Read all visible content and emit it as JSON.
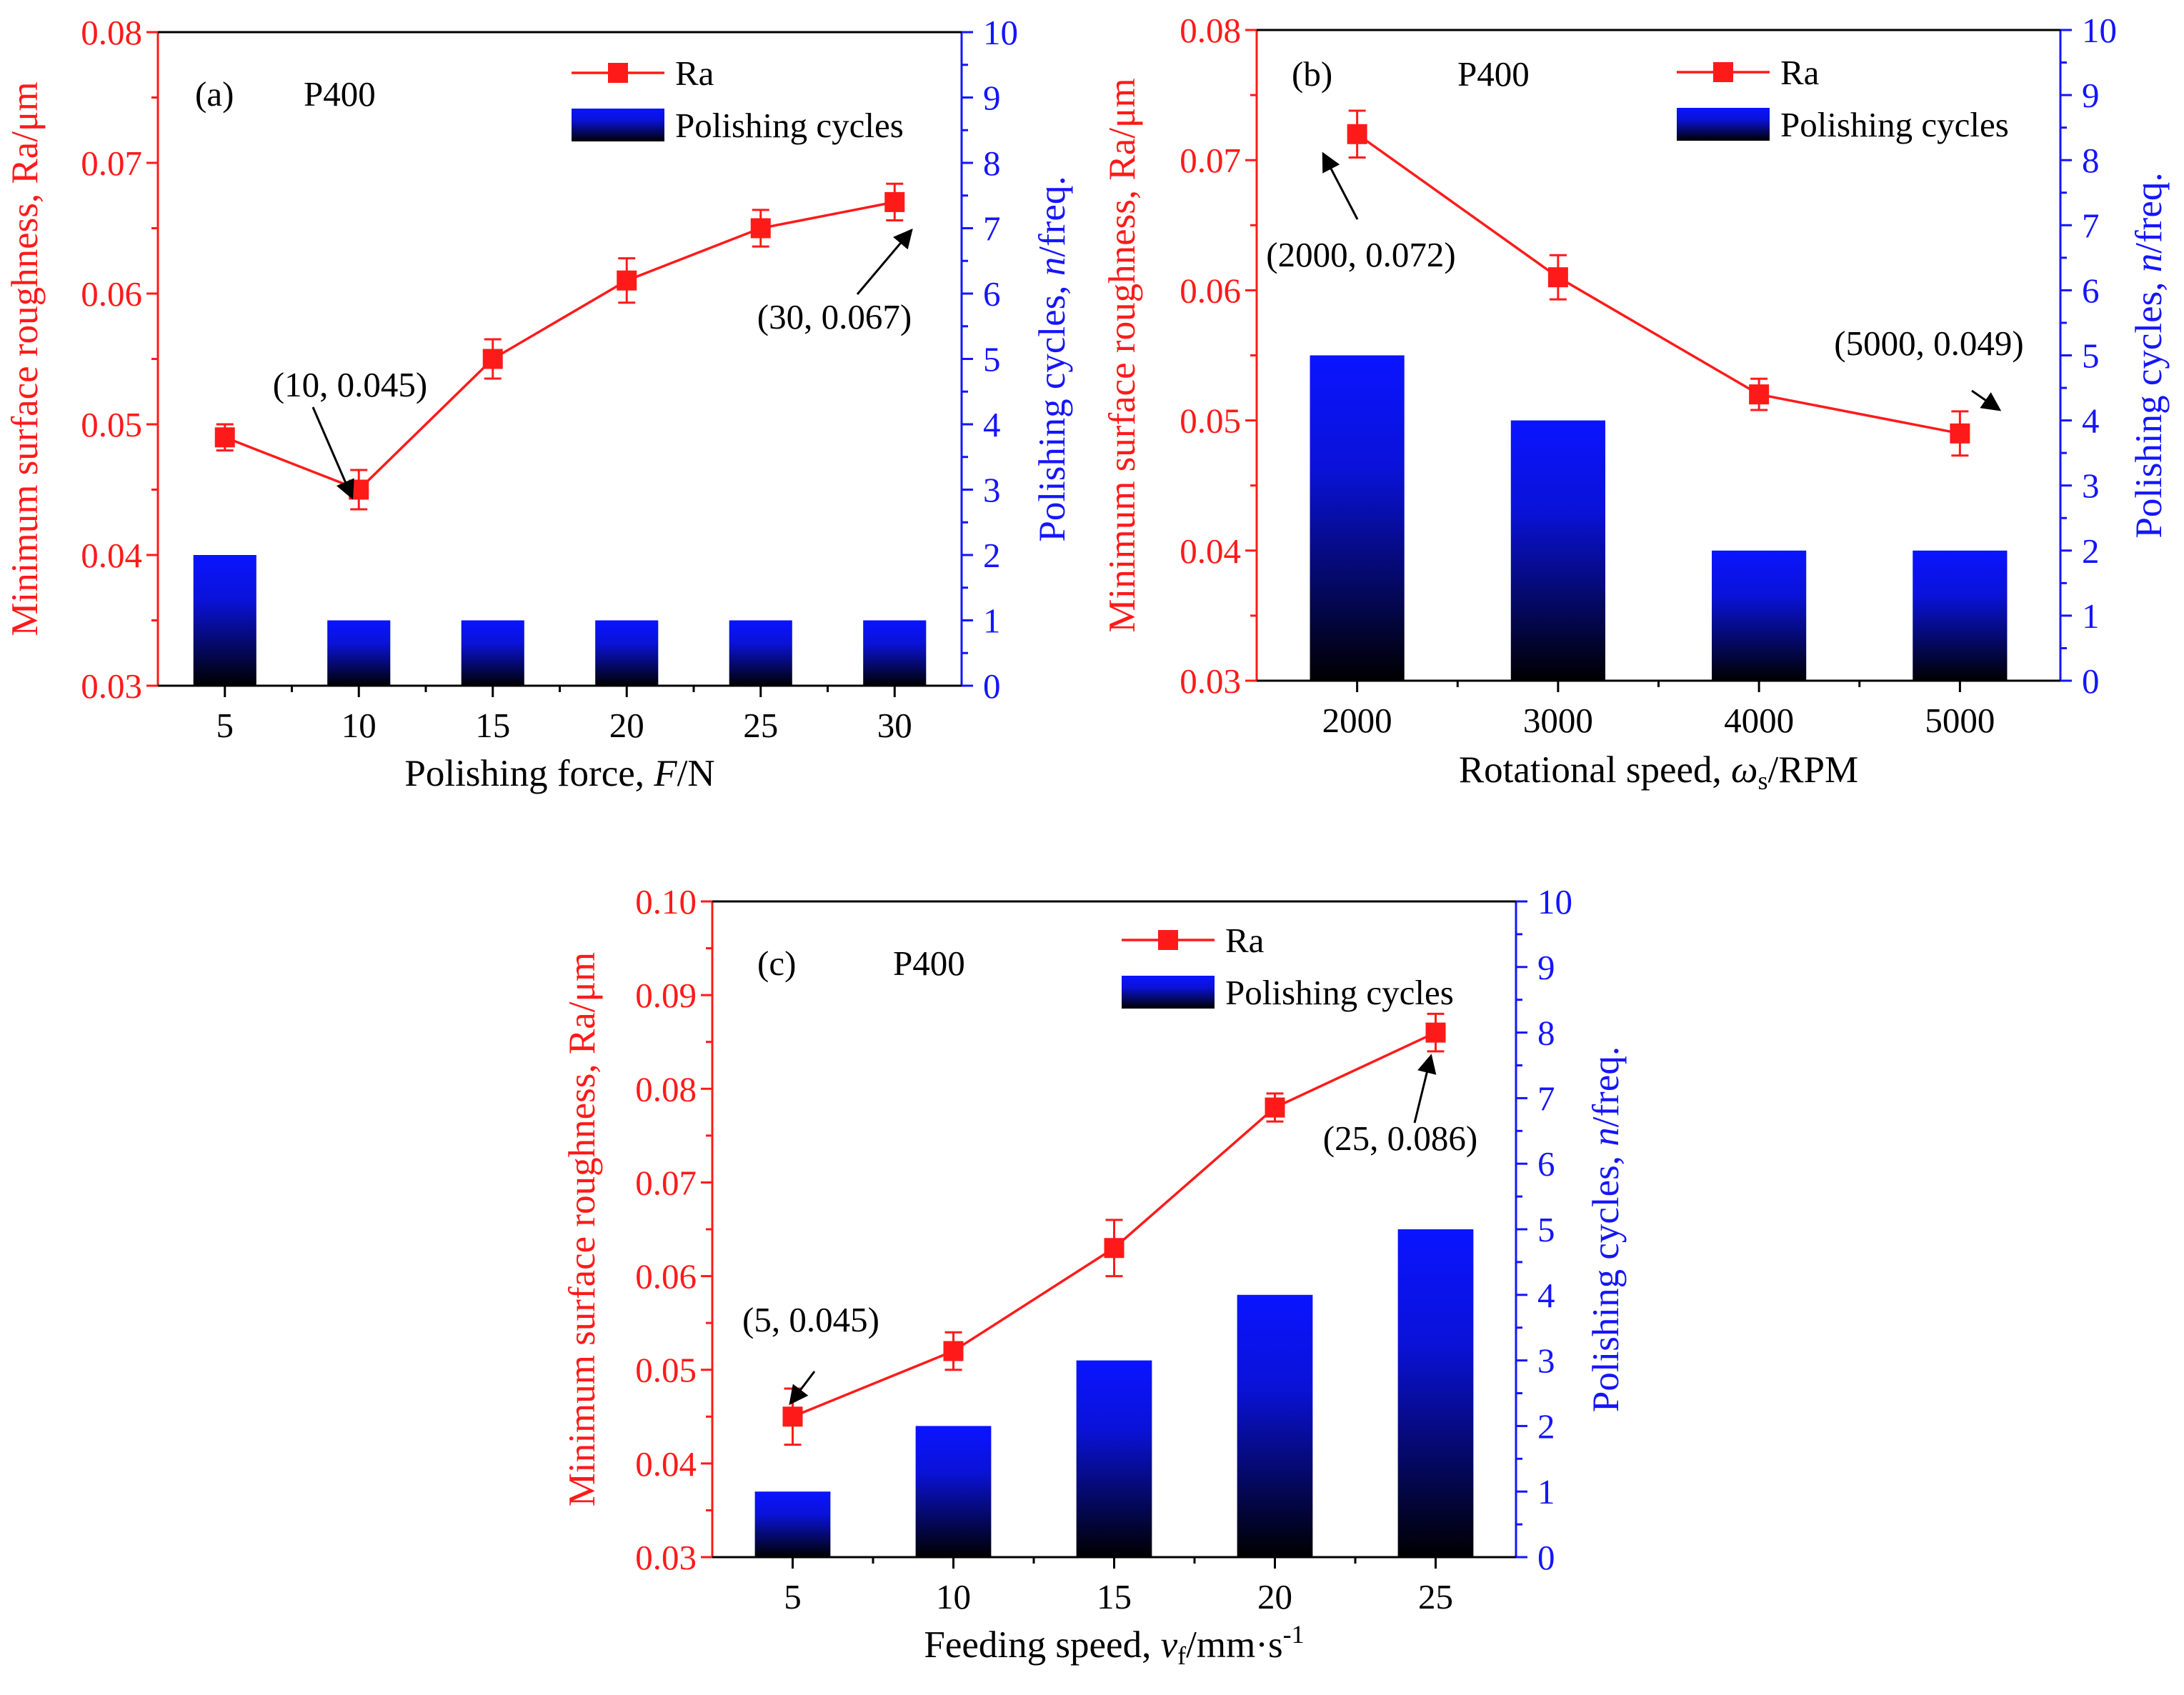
{
  "colors": {
    "ra": "#ff1a1a",
    "cycles": "#1515ff",
    "bar_top": "#0a14ff",
    "bar_bottom": "#000000",
    "axis": "#000000"
  },
  "legend": {
    "ra_label": "Ra",
    "cycles_label": "Polishing cycles"
  },
  "chart_data": [
    {
      "id": "a",
      "type": "bar+line",
      "panel_label": "(a)",
      "grit": "P400",
      "xlabel": {
        "pre": "Polishing force, ",
        "var": "F",
        "post": "/N"
      },
      "ylabel_left": "Minimum surface roughness, Ra/μm",
      "ylabel_right": {
        "pre": "Polishing cycles, ",
        "var": "n",
        "post": "/freq."
      },
      "ylim_left": [
        0.03,
        0.08
      ],
      "yticks_left": [
        "0.03",
        "0.04",
        "0.05",
        "0.06",
        "0.07",
        "0.08"
      ],
      "ylim_right": [
        0,
        10
      ],
      "yticks_right": [
        "0",
        "1",
        "2",
        "3",
        "4",
        "5",
        "6",
        "7",
        "8",
        "9",
        "10"
      ],
      "categories": [
        "5",
        "10",
        "15",
        "20",
        "25",
        "30"
      ],
      "series": [
        {
          "name": "Ra",
          "kind": "line",
          "axis": "left",
          "values": [
            0.049,
            0.045,
            0.055,
            0.061,
            0.065,
            0.067
          ],
          "errors": [
            0.001,
            0.0015,
            0.0015,
            0.0017,
            0.0014,
            0.0014
          ]
        },
        {
          "name": "Polishing cycles",
          "kind": "bar",
          "axis": "right",
          "values": [
            2,
            1,
            1,
            1,
            1,
            1
          ]
        }
      ],
      "annotations": [
        {
          "text": "(10, 0.045)",
          "index": 1
        },
        {
          "text": "(30, 0.067)",
          "index": 5
        }
      ]
    },
    {
      "id": "b",
      "type": "bar+line",
      "panel_label": "(b)",
      "grit": "P400",
      "xlabel": {
        "pre": "Rotational speed, ",
        "var": "ω",
        "sub": "s",
        "post": "/RPM"
      },
      "ylabel_left": "Minimum surface roughness, Ra/μm",
      "ylabel_right": {
        "pre": "Polishing cycles, ",
        "var": "n",
        "post": "/freq."
      },
      "ylim_left": [
        0.03,
        0.08
      ],
      "yticks_left": [
        "0.03",
        "0.04",
        "0.05",
        "0.06",
        "0.07",
        "0.08"
      ],
      "ylim_right": [
        0,
        10
      ],
      "yticks_right": [
        "0",
        "1",
        "2",
        "3",
        "4",
        "5",
        "6",
        "7",
        "8",
        "9",
        "10"
      ],
      "categories": [
        "2000",
        "3000",
        "4000",
        "5000"
      ],
      "series": [
        {
          "name": "Ra",
          "kind": "line",
          "axis": "left",
          "values": [
            0.072,
            0.061,
            0.052,
            0.049
          ],
          "errors": [
            0.0018,
            0.0017,
            0.0012,
            0.0017
          ]
        },
        {
          "name": "Polishing cycles",
          "kind": "bar",
          "axis": "right",
          "values": [
            5,
            4,
            2,
            2
          ]
        }
      ],
      "annotations": [
        {
          "text": "(2000, 0.072)",
          "index": 0
        },
        {
          "text": "(5000, 0.049)",
          "index": 3
        }
      ]
    },
    {
      "id": "c",
      "type": "bar+line",
      "panel_label": "(c)",
      "grit": "P400",
      "xlabel": {
        "pre": "Feeding speed, ",
        "var": "v",
        "sub": "f",
        "post": "/mm·s",
        "sup": "-1"
      },
      "ylabel_left": "Minimum surface roughness, Ra/μm",
      "ylabel_right": {
        "pre": "Polishing cycles, ",
        "var": "n",
        "post": "/freq."
      },
      "ylim_left": [
        0.03,
        0.1
      ],
      "yticks_left": [
        "0.03",
        "0.04",
        "0.05",
        "0.06",
        "0.07",
        "0.08",
        "0.09",
        "0.10"
      ],
      "ylim_right": [
        0,
        10
      ],
      "yticks_right": [
        "0",
        "1",
        "2",
        "3",
        "4",
        "5",
        "6",
        "7",
        "8",
        "9",
        "10"
      ],
      "categories": [
        "5",
        "10",
        "15",
        "20",
        "25"
      ],
      "series": [
        {
          "name": "Ra",
          "kind": "line",
          "axis": "left",
          "values": [
            0.045,
            0.052,
            0.063,
            0.078,
            0.086
          ],
          "errors": [
            0.003,
            0.002,
            0.003,
            0.0015,
            0.002
          ]
        },
        {
          "name": "Polishing cycles",
          "kind": "bar",
          "axis": "right",
          "values": [
            1,
            2,
            3,
            4,
            5
          ]
        }
      ],
      "annotations": [
        {
          "text": "(5, 0.045)",
          "index": 0
        },
        {
          "text": "(25, 0.086)",
          "index": 4
        }
      ]
    }
  ]
}
